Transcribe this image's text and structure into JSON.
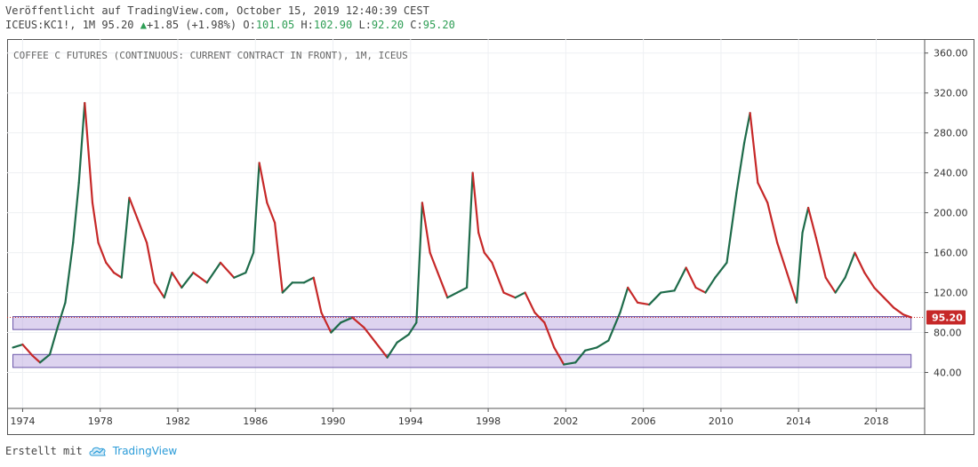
{
  "header": {
    "published": "Veröffentlicht auf TradingView.com, October 15, 2019 12:40:39 CEST",
    "symbol": "ICEUS:KC1!, 1M",
    "last": "95.20",
    "change": "+1.85 (+1.98%)",
    "o_label": "O:",
    "o_val": "101.05",
    "h_label": "H:",
    "h_val": "102.90",
    "l_label": "L:",
    "l_val": "92.20",
    "c_label": "C:",
    "c_val": "95.20"
  },
  "footer": {
    "created_with": "Erstellt mit",
    "brand": "TradingView"
  },
  "chart_data": {
    "type": "line",
    "title": "COFFEE C FUTURES (CONTINUOUS: CURRENT CONTRACT IN FRONT), 1M, ICEUS",
    "xlabel": "",
    "ylabel": "",
    "x_ticks": [
      "1974",
      "1978",
      "1982",
      "1986",
      "1990",
      "1994",
      "1998",
      "2002",
      "2006",
      "2010",
      "2014",
      "2018"
    ],
    "y_ticks": [
      "40.00",
      "80.00",
      "120.00",
      "160.00",
      "200.00",
      "240.00",
      "280.00",
      "320.00",
      "360.00"
    ],
    "xlim": [
      1973.2,
      2020.5
    ],
    "ylim": [
      4,
      374
    ],
    "last_price_label": "95.20",
    "last_price": 95.2,
    "colors": {
      "up": "#1e6b4a",
      "down": "#c62828",
      "zone": "#b39ddb",
      "zone_border": "#6a55a8",
      "last": "#c62828"
    },
    "zones": [
      {
        "y_low": 83,
        "y_high": 96
      },
      {
        "y_low": 45,
        "y_high": 58
      }
    ],
    "series": [
      {
        "x": [
          1973.5,
          1974.0,
          1974.5,
          1974.9,
          1975.4,
          1975.8,
          1976.2,
          1976.6,
          1976.9,
          1977.2,
          1977.6,
          1977.9,
          1978.3,
          1978.7,
          1979.1,
          1979.5,
          1979.9,
          1980.4,
          1980.8,
          1981.3,
          1981.7,
          1982.2,
          1982.8,
          1983.5,
          1984.2,
          1984.9,
          1985.5,
          1985.9,
          1986.2,
          1986.6,
          1987.0,
          1987.4,
          1987.9,
          1988.5,
          1989.0,
          1989.4,
          1989.9,
          1990.4,
          1991.0,
          1991.6,
          1992.2,
          1992.8,
          1993.3,
          1993.9,
          1994.3,
          1994.6,
          1995.0,
          1995.4,
          1995.9,
          1996.4,
          1996.9,
          1997.2,
          1997.5,
          1997.8,
          1998.2,
          1998.8,
          1999.4,
          1999.9,
          2000.4,
          2000.9,
          2001.4,
          2001.9,
          2002.5,
          2003.0,
          2003.6,
          2004.2,
          2004.8,
          2005.2,
          2005.7,
          2006.3,
          2006.9,
          2007.6,
          2008.2,
          2008.7,
          2009.2,
          2009.7,
          2010.3,
          2010.8,
          2011.2,
          2011.5,
          2011.9,
          2012.4,
          2012.9,
          2013.4,
          2013.9,
          2014.2,
          2014.5,
          2014.9,
          2015.4,
          2015.9,
          2016.4,
          2016.9,
          2017.4,
          2017.9,
          2018.4,
          2018.9,
          2019.4,
          2019.8
        ],
        "values": [
          65,
          68,
          57,
          50,
          58,
          85,
          110,
          170,
          230,
          310,
          210,
          170,
          150,
          140,
          135,
          215,
          195,
          170,
          130,
          115,
          140,
          125,
          140,
          130,
          150,
          135,
          140,
          160,
          250,
          210,
          190,
          120,
          130,
          130,
          135,
          100,
          80,
          90,
          95,
          85,
          70,
          55,
          70,
          78,
          90,
          210,
          160,
          140,
          115,
          120,
          125,
          240,
          180,
          160,
          150,
          120,
          115,
          120,
          100,
          90,
          65,
          48,
          50,
          62,
          65,
          72,
          100,
          125,
          110,
          108,
          120,
          122,
          145,
          125,
          120,
          135,
          150,
          220,
          270,
          300,
          230,
          210,
          170,
          140,
          110,
          180,
          205,
          175,
          135,
          120,
          135,
          160,
          140,
          125,
          115,
          105,
          98,
          95.2
        ]
      }
    ]
  }
}
